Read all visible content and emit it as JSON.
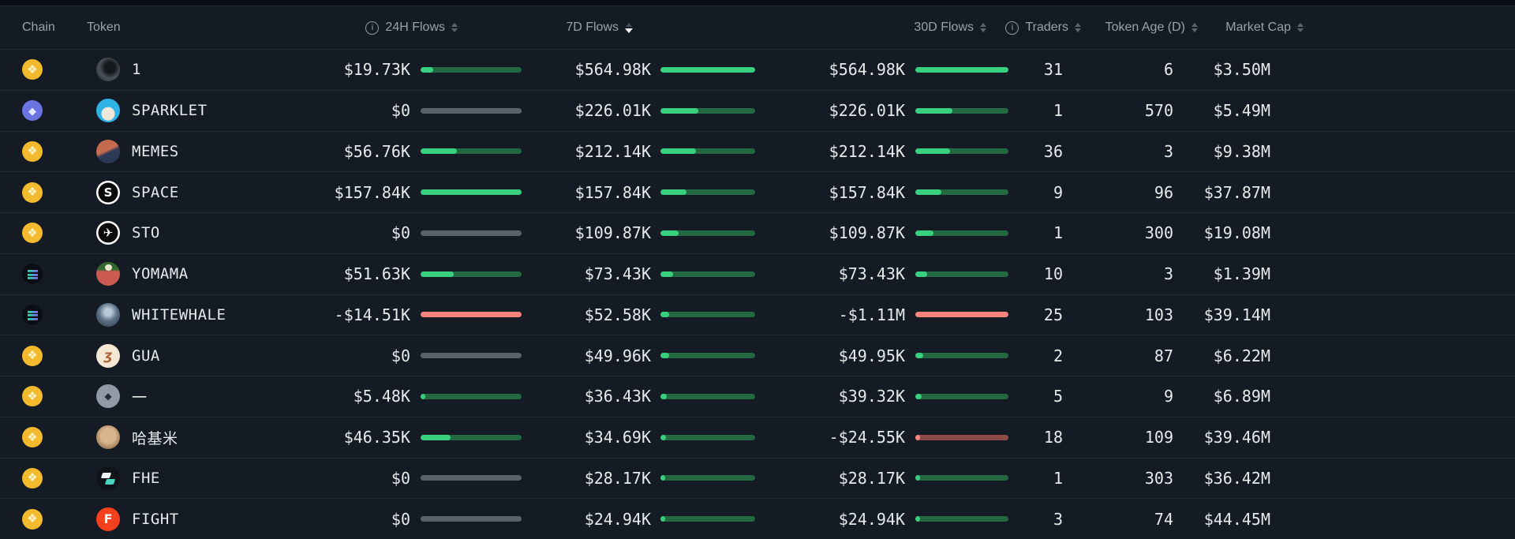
{
  "colors": {
    "positive_fill": "#38d07f",
    "positive_track": "#226841",
    "negative_fill": "#f9837d",
    "negative_track": "#8e4b46",
    "zero_track": "#59616b",
    "bnb_yellow": "#f2ba2c",
    "eth_indigo": "#6a75e2"
  },
  "header": {
    "columns": [
      {
        "label": "Chain"
      },
      {
        "label": "Token"
      },
      {
        "label": "24H Flows",
        "info": true,
        "sortable": true
      },
      {
        "label": "7D Flows",
        "sortable": true,
        "sort_active": "desc"
      },
      {
        "label": "30D Flows",
        "sortable": true
      },
      {
        "label": "Traders",
        "info": true,
        "sortable": true
      },
      {
        "label": "Token Age (D)",
        "sortable": true
      },
      {
        "label": "Market Cap",
        "sortable": true
      }
    ]
  },
  "rows": [
    {
      "chain": "bnb",
      "name": "1",
      "avatar": "rock",
      "glyph": "",
      "f24": {
        "v": "$19.73K",
        "pct": 12.5,
        "tone": "pos"
      },
      "f7": {
        "v": "$564.98K",
        "pct": 100,
        "tone": "pos"
      },
      "f30": {
        "v": "$564.98K",
        "pct": 100,
        "tone": "pos"
      },
      "traders": "31",
      "age": "6",
      "mcap": "$3.50M"
    },
    {
      "chain": "eth",
      "name": "SPARKLET",
      "avatar": "llama",
      "glyph": "",
      "f24": {
        "v": "$0",
        "pct": 0,
        "tone": "zero"
      },
      "f7": {
        "v": "$226.01K",
        "pct": 40,
        "tone": "pos"
      },
      "f30": {
        "v": "$226.01K",
        "pct": 40,
        "tone": "pos"
      },
      "traders": "1",
      "age": "570",
      "mcap": "$5.49M"
    },
    {
      "chain": "bnb",
      "name": "MEMES",
      "avatar": "trump",
      "glyph": "",
      "f24": {
        "v": "$56.76K",
        "pct": 36,
        "tone": "pos"
      },
      "f7": {
        "v": "$212.14K",
        "pct": 37.5,
        "tone": "pos"
      },
      "f30": {
        "v": "$212.14K",
        "pct": 37.5,
        "tone": "pos"
      },
      "traders": "36",
      "age": "3",
      "mcap": "$9.38M"
    },
    {
      "chain": "bnb",
      "name": "SPACE",
      "avatar": "space",
      "glyph": "S",
      "f24": {
        "v": "$157.84K",
        "pct": 100,
        "tone": "pos"
      },
      "f7": {
        "v": "$157.84K",
        "pct": 27.9,
        "tone": "pos"
      },
      "f30": {
        "v": "$157.84K",
        "pct": 27.9,
        "tone": "pos"
      },
      "traders": "9",
      "age": "96",
      "mcap": "$37.87M"
    },
    {
      "chain": "bnb",
      "name": "STO",
      "avatar": "origami",
      "glyph": "✈",
      "f24": {
        "v": "$0",
        "pct": 0,
        "tone": "zero"
      },
      "f7": {
        "v": "$109.87K",
        "pct": 19.4,
        "tone": "pos"
      },
      "f30": {
        "v": "$109.87K",
        "pct": 19.4,
        "tone": "pos"
      },
      "traders": "1",
      "age": "300",
      "mcap": "$19.08M"
    },
    {
      "chain": "sol",
      "name": "YOMAMA",
      "avatar": "parrot",
      "glyph": "",
      "f24": {
        "v": "$51.63K",
        "pct": 32.7,
        "tone": "pos"
      },
      "f7": {
        "v": "$73.43K",
        "pct": 13,
        "tone": "pos"
      },
      "f30": {
        "v": "$73.43K",
        "pct": 13,
        "tone": "pos"
      },
      "traders": "10",
      "age": "3",
      "mcap": "$1.39M"
    },
    {
      "chain": "sol",
      "name": "WHITEWHALE",
      "avatar": "whale",
      "glyph": "",
      "f24": {
        "v": "-$14.51K",
        "pct": 100,
        "tone": "neg"
      },
      "f7": {
        "v": "$52.58K",
        "pct": 9.3,
        "tone": "pos"
      },
      "f30": {
        "v": "-$1.11M",
        "pct": 100,
        "tone": "neg"
      },
      "traders": "25",
      "age": "103",
      "mcap": "$39.14M"
    },
    {
      "chain": "bnb",
      "name": "GUA",
      "avatar": "gua",
      "glyph": "ʒ",
      "f24": {
        "v": "$0",
        "pct": 0,
        "tone": "zero"
      },
      "f7": {
        "v": "$49.96K",
        "pct": 8.8,
        "tone": "pos"
      },
      "f30": {
        "v": "$49.95K",
        "pct": 8.8,
        "tone": "pos"
      },
      "traders": "2",
      "age": "87",
      "mcap": "$6.22M"
    },
    {
      "chain": "bnb",
      "name": "一",
      "avatar": "dash",
      "glyph": "◆",
      "f24": {
        "v": "$5.48K",
        "pct": 3.5,
        "tone": "pos"
      },
      "f7": {
        "v": "$36.43K",
        "pct": 6.4,
        "tone": "pos"
      },
      "f30": {
        "v": "$39.32K",
        "pct": 7,
        "tone": "pos"
      },
      "traders": "5",
      "age": "9",
      "mcap": "$6.89M"
    },
    {
      "chain": "bnb",
      "name": "哈基米",
      "avatar": "hamster",
      "glyph": "",
      "f24": {
        "v": "$46.35K",
        "pct": 29.4,
        "tone": "pos"
      },
      "f7": {
        "v": "$34.69K",
        "pct": 6.1,
        "tone": "pos"
      },
      "f30": {
        "v": "-$24.55K",
        "pct": 2.2,
        "tone": "neg"
      },
      "traders": "18",
      "age": "109",
      "mcap": "$39.46M"
    },
    {
      "chain": "bnb",
      "name": "FHE",
      "avatar": "fhe",
      "glyph": "",
      "f24": {
        "v": "$0",
        "pct": 0,
        "tone": "zero"
      },
      "f7": {
        "v": "$28.17K",
        "pct": 5,
        "tone": "pos"
      },
      "f30": {
        "v": "$28.17K",
        "pct": 5,
        "tone": "pos"
      },
      "traders": "1",
      "age": "303",
      "mcap": "$36.42M"
    },
    {
      "chain": "bnb",
      "name": "FIGHT",
      "avatar": "fight",
      "glyph": "F",
      "f24": {
        "v": "$0",
        "pct": 0,
        "tone": "zero"
      },
      "f7": {
        "v": "$24.94K",
        "pct": 4.4,
        "tone": "pos"
      },
      "f30": {
        "v": "$24.94K",
        "pct": 4.4,
        "tone": "pos"
      },
      "traders": "3",
      "age": "74",
      "mcap": "$44.45M"
    }
  ]
}
